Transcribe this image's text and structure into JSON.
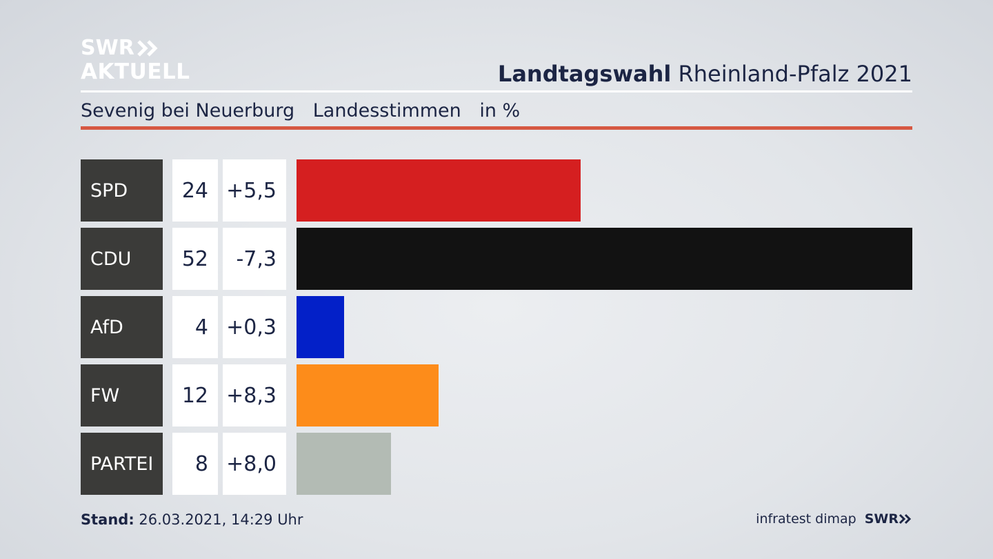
{
  "header": {
    "logo_line1": "SWR",
    "logo_line2": "AKTUELL",
    "title_bold": "Landtagswahl",
    "title_regular": "Rheinland-Pfalz 2021"
  },
  "subtitle": {
    "location": "Sevenig bei Neuerburg",
    "measure": "Landesstimmen",
    "unit": "in %"
  },
  "chart_data": {
    "type": "bar",
    "orientation": "horizontal",
    "categories": [
      "SPD",
      "CDU",
      "AfD",
      "FW",
      "PARTEI"
    ],
    "values": [
      24,
      52,
      4,
      12,
      8
    ],
    "changes": [
      "+5,5",
      "-7,3",
      "+0,3",
      "+8,3",
      "+8,0"
    ],
    "colors": [
      "#d51f20",
      "#121212",
      "#0320c8",
      "#fd8c1a",
      "#b3bbb4"
    ],
    "title": "",
    "xlabel": "",
    "ylabel": "",
    "xlim": [
      0,
      52
    ]
  },
  "footer": {
    "stand_label": "Stand:",
    "stand_value": "26.03.2021, 14:29 Uhr",
    "source": "infratest dimap",
    "brand": "SWR"
  }
}
